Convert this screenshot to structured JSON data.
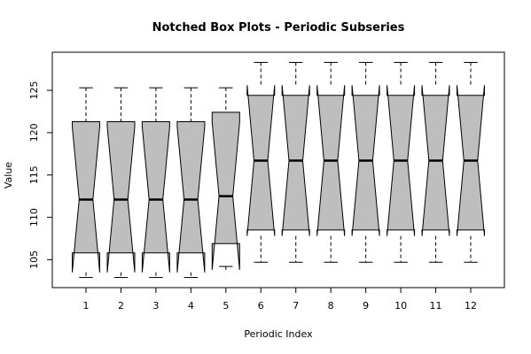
{
  "chart_data": {
    "type": "boxplot",
    "notched": true,
    "title": "Notched Box Plots - Periodic Subseries",
    "xlabel": "Periodic Index",
    "ylabel": "Value",
    "ylim": [
      101.7,
      129.5
    ],
    "yticks": [
      105,
      110,
      115,
      120,
      125
    ],
    "categories": [
      "1",
      "2",
      "3",
      "4",
      "5",
      "6",
      "7",
      "8",
      "9",
      "10",
      "11",
      "12"
    ],
    "boxes": [
      {
        "min": 102.9,
        "q1": 105.8,
        "median": 112.1,
        "q3": 121.3,
        "max": 125.3,
        "notch_lo": 103.5,
        "notch_hi": 120.7
      },
      {
        "min": 102.9,
        "q1": 105.8,
        "median": 112.1,
        "q3": 121.3,
        "max": 125.3,
        "notch_lo": 103.5,
        "notch_hi": 120.7
      },
      {
        "min": 102.9,
        "q1": 105.8,
        "median": 112.1,
        "q3": 121.3,
        "max": 125.3,
        "notch_lo": 103.5,
        "notch_hi": 120.7
      },
      {
        "min": 102.9,
        "q1": 105.8,
        "median": 112.1,
        "q3": 121.3,
        "max": 125.3,
        "notch_lo": 103.5,
        "notch_hi": 120.7
      },
      {
        "min": 104.2,
        "q1": 106.9,
        "median": 112.5,
        "q3": 122.4,
        "max": 125.3,
        "notch_lo": 103.8,
        "notch_hi": 121.2
      },
      {
        "min": 104.7,
        "q1": 108.5,
        "median": 116.7,
        "q3": 124.4,
        "max": 128.3,
        "notch_lo": 107.8,
        "notch_hi": 125.6
      },
      {
        "min": 104.7,
        "q1": 108.5,
        "median": 116.7,
        "q3": 124.4,
        "max": 128.3,
        "notch_lo": 107.8,
        "notch_hi": 125.6
      },
      {
        "min": 104.7,
        "q1": 108.5,
        "median": 116.7,
        "q3": 124.4,
        "max": 128.3,
        "notch_lo": 107.8,
        "notch_hi": 125.6
      },
      {
        "min": 104.7,
        "q1": 108.5,
        "median": 116.7,
        "q3": 124.4,
        "max": 128.3,
        "notch_lo": 107.8,
        "notch_hi": 125.6
      },
      {
        "min": 104.7,
        "q1": 108.5,
        "median": 116.7,
        "q3": 124.4,
        "max": 128.3,
        "notch_lo": 107.8,
        "notch_hi": 125.6
      },
      {
        "min": 104.7,
        "q1": 108.5,
        "median": 116.7,
        "q3": 124.4,
        "max": 128.3,
        "notch_lo": 107.8,
        "notch_hi": 125.6
      },
      {
        "min": 104.7,
        "q1": 108.5,
        "median": 116.7,
        "q3": 124.4,
        "max": 128.3,
        "notch_lo": 107.8,
        "notch_hi": 125.6
      }
    ],
    "box_color": "#bebebe",
    "grid": false,
    "legend": "none"
  }
}
